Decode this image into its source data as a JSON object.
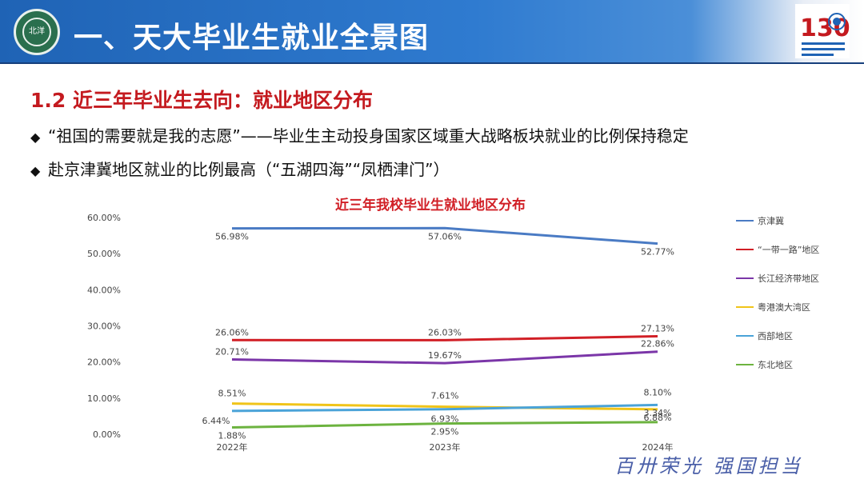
{
  "header": {
    "title": "一、天大毕业生就业全景图",
    "logo_text": "北洋",
    "anniversary_number": "130"
  },
  "section_title": "1.2 近三年毕业生去向：就业地区分布",
  "bullets": [
    "“祖国的需要就是我的志愿”——毕业生主动投身国家区域重大战略板块就业的比例保持稳定",
    "赴京津冀地区就业的比例最高（“五湖四海”“凤栖津门”）"
  ],
  "slogan": "百卅荣光  强国担当",
  "chart_data": {
    "type": "line",
    "title": "近三年我校毕业生就业地区分布",
    "categories": [
      "2022年",
      "2023年",
      "2024年"
    ],
    "ylim": [
      0,
      60
    ],
    "yticks": [
      "0.00%",
      "10.00%",
      "20.00%",
      "30.00%",
      "40.00%",
      "50.00%",
      "60.00%"
    ],
    "grid": false,
    "legend_position": "right",
    "series": [
      {
        "name": "京津冀",
        "color": "#4a7bc4",
        "values": [
          56.98,
          57.06,
          52.77
        ],
        "labels": [
          "56.98%",
          "57.06%",
          "52.77%"
        ]
      },
      {
        "name": "“一带一路”地区",
        "color": "#d11f26",
        "values": [
          26.06,
          26.03,
          27.13
        ],
        "labels": [
          "26.06%",
          "26.03%",
          "27.13%"
        ]
      },
      {
        "name": "长江经济带地区",
        "color": "#7b36a8",
        "values": [
          20.71,
          19.67,
          22.86
        ],
        "labels": [
          "20.71%",
          "19.67%",
          "22.86%"
        ]
      },
      {
        "name": "粤港澳大湾区",
        "color": "#f0c419",
        "values": [
          8.51,
          7.61,
          6.88
        ],
        "labels": [
          "8.51%",
          "7.61%",
          "6.88%"
        ]
      },
      {
        "name": "西部地区",
        "color": "#4aa3d8",
        "values": [
          6.44,
          6.93,
          8.1
        ],
        "labels": [
          "6.44%",
          "6.93%",
          "8.10%"
        ]
      },
      {
        "name": "东北地区",
        "color": "#6cb33f",
        "values": [
          1.88,
          2.95,
          3.34
        ],
        "labels": [
          "1.88%",
          "2.95%",
          "3.34%"
        ]
      }
    ]
  }
}
